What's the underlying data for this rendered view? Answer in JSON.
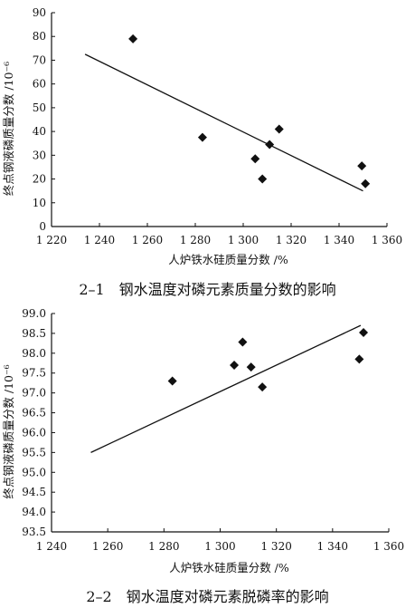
{
  "chart_data": [
    {
      "type": "scatter",
      "caption": "2–1　钢水温度对磷元素质量分数的影响",
      "xlabel": "人炉铁水硅质量分数 /%",
      "ylabel": "终点钢液磷质量分数 /10⁻⁶",
      "xlim": [
        1220,
        1360
      ],
      "ylim": [
        0,
        90
      ],
      "xticks": [
        1220,
        1240,
        1260,
        1280,
        1300,
        1320,
        1340,
        1360
      ],
      "xtick_labels": [
        "1 220",
        "1 240",
        "1 260",
        "1 280",
        "1 300",
        "1 320",
        "1 340",
        "1 360"
      ],
      "yticks": [
        0,
        10,
        20,
        30,
        40,
        50,
        60,
        70,
        80,
        90
      ],
      "ytick_labels": [
        "0",
        "10",
        "20",
        "30",
        "40",
        "50",
        "60",
        "70",
        "80",
        "90"
      ],
      "points": [
        {
          "x": 1254,
          "y": 79
        },
        {
          "x": 1283,
          "y": 37.5
        },
        {
          "x": 1305,
          "y": 28.5
        },
        {
          "x": 1308,
          "y": 20
        },
        {
          "x": 1311,
          "y": 34.5
        },
        {
          "x": 1315,
          "y": 41
        },
        {
          "x": 1349.5,
          "y": 25.5
        },
        {
          "x": 1351,
          "y": 18
        }
      ],
      "trendline": {
        "x": [
          1234,
          1350
        ],
        "y": [
          72.5,
          15
        ]
      },
      "grid": false,
      "marker": "diamond"
    },
    {
      "type": "scatter",
      "caption": "2–2　钢水温度对磷元素脱磷率的影响",
      "xlabel": "人炉铁水硅质量分数 /%",
      "ylabel": "终点钢液磷质量分数 /10⁻⁶",
      "xlim": [
        1240,
        1360
      ],
      "ylim": [
        93.5,
        99.0
      ],
      "xticks": [
        1240,
        1260,
        1280,
        1300,
        1320,
        1340,
        1360
      ],
      "xtick_labels": [
        "1 240",
        "1 260",
        "1 280",
        "1 300",
        "1 320",
        "1 340",
        "1 360"
      ],
      "yticks": [
        93.5,
        94.0,
        94.5,
        95.0,
        95.5,
        96.0,
        96.5,
        97.0,
        97.5,
        98.0,
        98.5,
        99.0
      ],
      "ytick_labels": [
        "93.5",
        "94.0",
        "94.5",
        "95.0",
        "95.5",
        "96.0",
        "96.5",
        "97.0",
        "97.5",
        "98.0",
        "98.5",
        "99.0"
      ],
      "points": [
        {
          "x": 1283,
          "y": 97.3
        },
        {
          "x": 1305,
          "y": 97.7
        },
        {
          "x": 1308,
          "y": 98.28
        },
        {
          "x": 1311,
          "y": 97.65
        },
        {
          "x": 1315,
          "y": 97.15
        },
        {
          "x": 1349.5,
          "y": 97.85
        },
        {
          "x": 1351,
          "y": 98.52
        }
      ],
      "trendline": {
        "x": [
          1254,
          1350
        ],
        "y": [
          95.5,
          98.7
        ]
      },
      "grid": false,
      "marker": "diamond"
    }
  ]
}
